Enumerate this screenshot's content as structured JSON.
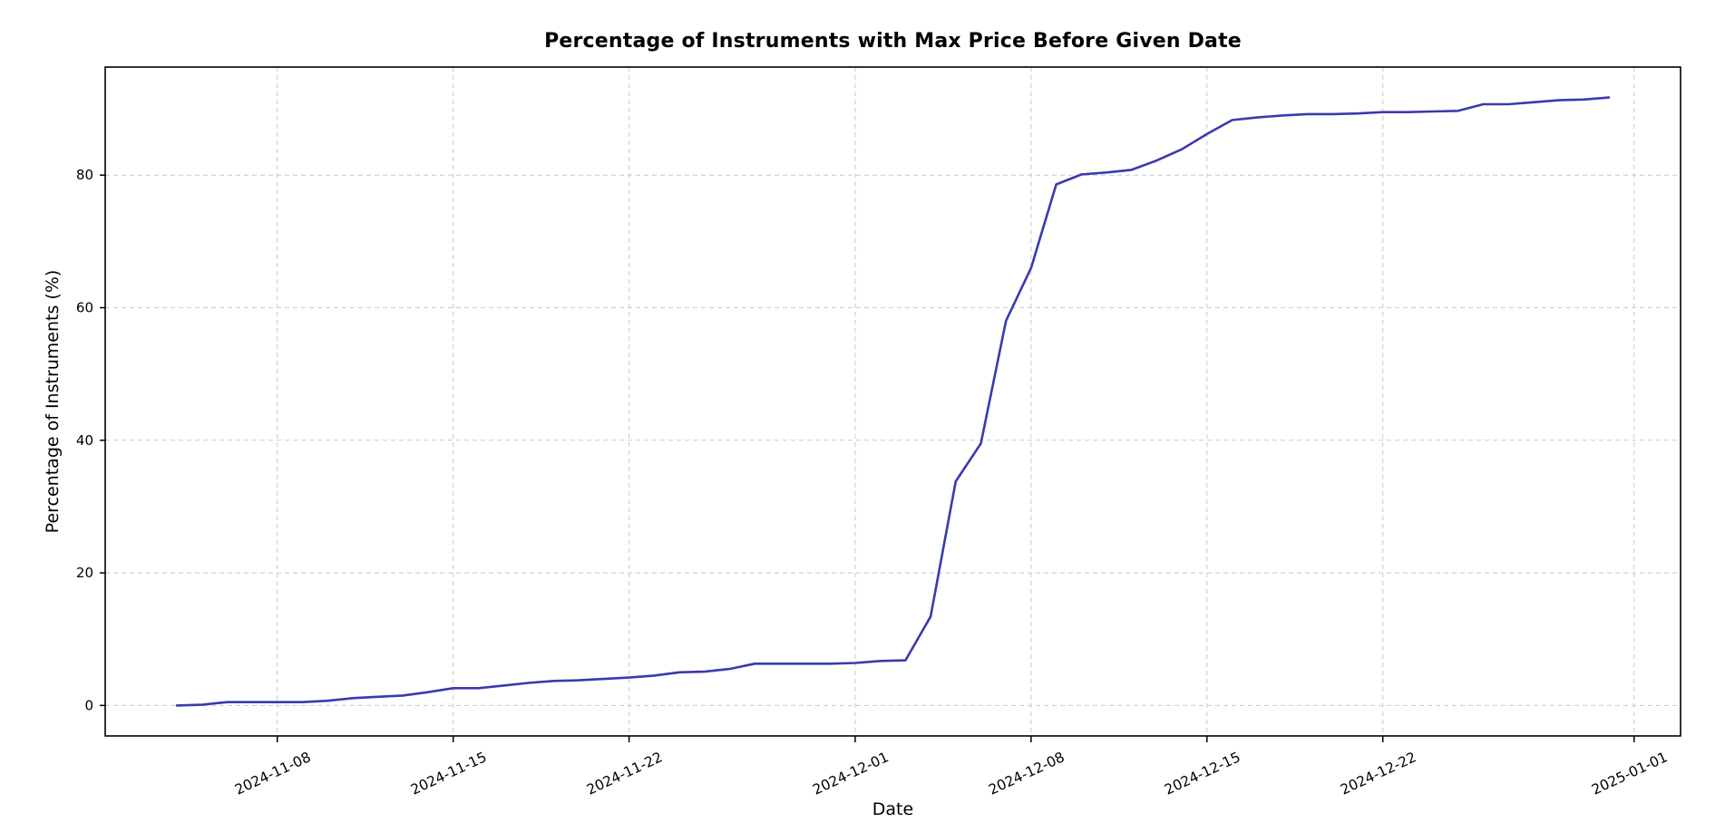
{
  "page": {
    "background": "#ffffff"
  },
  "chart_data": {
    "type": "line",
    "title": "Percentage of Instruments with Max Price Before Given Date",
    "xlabel": "Date",
    "ylabel": "Percentage of Instruments (%)",
    "grid": true,
    "grid_style": "dashed",
    "legend_position": "none",
    "x_ticks": [
      "2024-11-08",
      "2024-11-15",
      "2024-11-22",
      "2024-12-01",
      "2024-12-08",
      "2024-12-15",
      "2024-12-22",
      "2025-01-01"
    ],
    "y_ticks": [
      0,
      20,
      40,
      60,
      80
    ],
    "ylim": [
      -4.6,
      96.3
    ],
    "xlim_days_from_start": [
      -2.85,
      59.85
    ],
    "colors": {
      "line": "#3a3aae",
      "grid": "#c9c9c9",
      "spine": "#000000",
      "text": "#000000"
    },
    "series": [
      {
        "name": "Percentage of Instruments",
        "x": [
          "2024-11-04",
          "2024-11-05",
          "2024-11-06",
          "2024-11-07",
          "2024-11-08",
          "2024-11-09",
          "2024-11-10",
          "2024-11-11",
          "2024-11-12",
          "2024-11-13",
          "2024-11-14",
          "2024-11-15",
          "2024-11-16",
          "2024-11-17",
          "2024-11-18",
          "2024-11-19",
          "2024-11-20",
          "2024-11-21",
          "2024-11-22",
          "2024-11-23",
          "2024-11-24",
          "2024-11-25",
          "2024-11-26",
          "2024-11-27",
          "2024-11-28",
          "2024-11-29",
          "2024-11-30",
          "2024-12-01",
          "2024-12-02",
          "2024-12-03",
          "2024-12-04",
          "2024-12-05",
          "2024-12-06",
          "2024-12-07",
          "2024-12-08",
          "2024-12-09",
          "2024-12-10",
          "2024-12-11",
          "2024-12-12",
          "2024-12-13",
          "2024-12-14",
          "2024-12-15",
          "2024-12-16",
          "2024-12-17",
          "2024-12-18",
          "2024-12-19",
          "2024-12-20",
          "2024-12-21",
          "2024-12-22",
          "2024-12-23",
          "2024-12-24",
          "2024-12-25",
          "2024-12-26",
          "2024-12-27",
          "2024-12-28",
          "2024-12-29",
          "2024-12-30",
          "2024-12-31"
        ],
        "y": [
          0.0,
          0.1,
          0.5,
          0.5,
          0.5,
          0.5,
          0.7,
          1.1,
          1.3,
          1.5,
          2.0,
          2.6,
          2.6,
          3.0,
          3.4,
          3.7,
          3.8,
          4.0,
          4.2,
          4.5,
          5.0,
          5.1,
          5.5,
          6.3,
          6.3,
          6.3,
          6.3,
          6.4,
          6.7,
          6.8,
          13.4,
          33.8,
          39.5,
          58.0,
          66.0,
          78.6,
          80.1,
          80.4,
          80.8,
          82.2,
          83.9,
          86.2,
          88.3,
          88.7,
          89.0,
          89.2,
          89.2,
          89.3,
          89.5,
          89.5,
          89.6,
          89.7,
          90.7,
          90.7,
          91.0,
          91.3,
          91.4,
          91.7
        ]
      }
    ]
  }
}
